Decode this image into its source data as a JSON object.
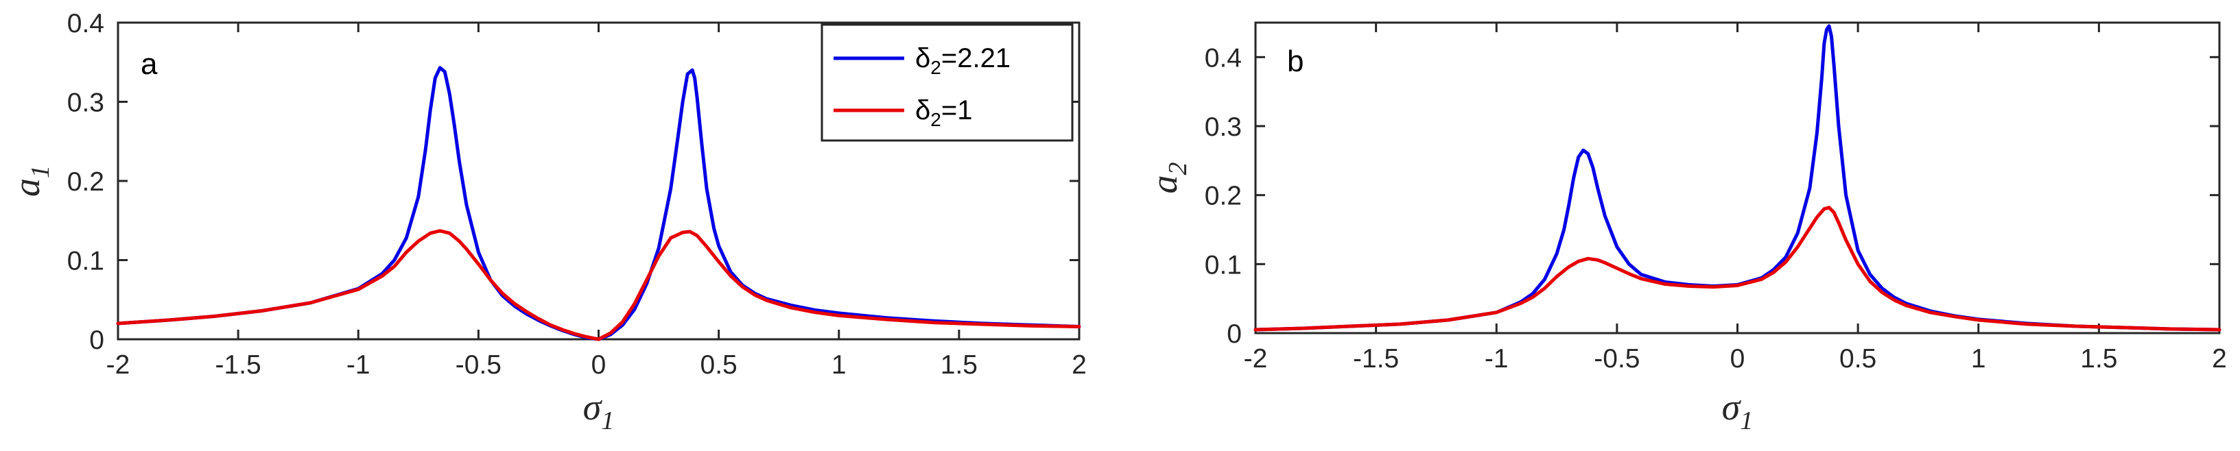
{
  "colors": {
    "series_blue": "#0000e6",
    "series_red": "#e60000",
    "axis": "#262626"
  },
  "chart_data": [
    {
      "type": "line",
      "panel_label": "a",
      "xlabel": "σ",
      "xlabel_sub": "1",
      "ylabel": "a",
      "ylabel_sub": "1",
      "xlim": [
        -2,
        2
      ],
      "ylim": [
        0,
        0.4
      ],
      "xticks": [
        -2,
        -1.5,
        -1,
        -0.5,
        0,
        0.5,
        1,
        1.5,
        2
      ],
      "xtick_labels": [
        "-2",
        "-1.5",
        "-1",
        "-0.5",
        "0",
        "0.5",
        "1",
        "1.5",
        "2"
      ],
      "yticks": [
        0,
        0.1,
        0.2,
        0.3,
        0.4
      ],
      "ytick_labels": [
        "0",
        "0.1",
        "0.2",
        "0.3",
        "0.4"
      ],
      "grid": false,
      "legend": {
        "placement": "top-right",
        "entries": [
          {
            "prefix": "δ",
            "sub": "2",
            "suffix": "=2.21"
          },
          {
            "prefix": "δ",
            "sub": "2",
            "suffix": "=1"
          }
        ]
      },
      "series": [
        {
          "color": "#0000e6",
          "x": [
            -2,
            -1.8,
            -1.6,
            -1.4,
            -1.2,
            -1.0,
            -0.9,
            -0.85,
            -0.8,
            -0.75,
            -0.72,
            -0.7,
            -0.68,
            -0.66,
            -0.64,
            -0.62,
            -0.6,
            -0.58,
            -0.55,
            -0.5,
            -0.45,
            -0.4,
            -0.35,
            -0.3,
            -0.25,
            -0.2,
            -0.15,
            -0.1,
            -0.05,
            0,
            0.05,
            0.1,
            0.15,
            0.2,
            0.25,
            0.3,
            0.33,
            0.35,
            0.37,
            0.39,
            0.4,
            0.41,
            0.43,
            0.45,
            0.48,
            0.5,
            0.55,
            0.6,
            0.65,
            0.7,
            0.8,
            0.9,
            1.0,
            1.2,
            1.4,
            1.6,
            1.8,
            2.0
          ],
          "y": [
            0.02,
            0.024,
            0.029,
            0.036,
            0.046,
            0.064,
            0.083,
            0.1,
            0.128,
            0.18,
            0.24,
            0.29,
            0.33,
            0.343,
            0.338,
            0.31,
            0.27,
            0.225,
            0.17,
            0.11,
            0.075,
            0.055,
            0.042,
            0.032,
            0.024,
            0.017,
            0.011,
            0.006,
            0.002,
            0.0,
            0.006,
            0.018,
            0.038,
            0.07,
            0.115,
            0.19,
            0.255,
            0.3,
            0.335,
            0.34,
            0.33,
            0.305,
            0.245,
            0.19,
            0.14,
            0.118,
            0.085,
            0.068,
            0.058,
            0.051,
            0.043,
            0.037,
            0.033,
            0.027,
            0.023,
            0.02,
            0.018,
            0.016
          ]
        },
        {
          "color": "#e60000",
          "x": [
            -2,
            -1.8,
            -1.6,
            -1.4,
            -1.2,
            -1.0,
            -0.9,
            -0.85,
            -0.8,
            -0.75,
            -0.7,
            -0.66,
            -0.62,
            -0.58,
            -0.55,
            -0.5,
            -0.45,
            -0.4,
            -0.35,
            -0.3,
            -0.25,
            -0.2,
            -0.15,
            -0.1,
            -0.05,
            0,
            0.05,
            0.1,
            0.15,
            0.2,
            0.25,
            0.3,
            0.35,
            0.38,
            0.41,
            0.45,
            0.5,
            0.55,
            0.6,
            0.65,
            0.7,
            0.8,
            0.9,
            1.0,
            1.2,
            1.4,
            1.6,
            1.8,
            2.0
          ],
          "y": [
            0.02,
            0.024,
            0.029,
            0.036,
            0.046,
            0.063,
            0.08,
            0.092,
            0.11,
            0.124,
            0.134,
            0.137,
            0.134,
            0.124,
            0.114,
            0.095,
            0.075,
            0.058,
            0.045,
            0.035,
            0.026,
            0.018,
            0.012,
            0.007,
            0.003,
            0.0,
            0.008,
            0.022,
            0.045,
            0.075,
            0.105,
            0.128,
            0.135,
            0.136,
            0.131,
            0.117,
            0.098,
            0.08,
            0.066,
            0.056,
            0.049,
            0.04,
            0.034,
            0.03,
            0.025,
            0.021,
            0.019,
            0.017,
            0.016
          ]
        }
      ]
    },
    {
      "type": "line",
      "panel_label": "b",
      "xlabel": "σ",
      "xlabel_sub": "1",
      "ylabel": "a",
      "ylabel_sub": "2",
      "xlim": [
        -2,
        2
      ],
      "ylim": [
        0,
        0.45
      ],
      "xticks": [
        -2,
        -1.5,
        -1,
        -0.5,
        0,
        0.5,
        1,
        1.5,
        2
      ],
      "xtick_labels": [
        "-2",
        "-1.5",
        "-1",
        "-0.5",
        "0",
        "0.5",
        "1",
        "1.5",
        "2"
      ],
      "yticks": [
        0,
        0.1,
        0.2,
        0.3,
        0.4
      ],
      "ytick_labels": [
        "0",
        "0.1",
        "0.2",
        "0.3",
        "0.4"
      ],
      "grid": false,
      "series": [
        {
          "color": "#0000e6",
          "x": [
            -2,
            -1.8,
            -1.6,
            -1.4,
            -1.2,
            -1.0,
            -0.9,
            -0.85,
            -0.8,
            -0.75,
            -0.72,
            -0.7,
            -0.68,
            -0.66,
            -0.64,
            -0.62,
            -0.6,
            -0.58,
            -0.55,
            -0.5,
            -0.45,
            -0.4,
            -0.3,
            -0.2,
            -0.1,
            0,
            0.1,
            0.15,
            0.2,
            0.25,
            0.3,
            0.33,
            0.35,
            0.36,
            0.37,
            0.38,
            0.39,
            0.4,
            0.42,
            0.45,
            0.5,
            0.55,
            0.6,
            0.65,
            0.7,
            0.8,
            0.9,
            1.0,
            1.2,
            1.4,
            1.6,
            1.8,
            2.0
          ],
          "y": [
            0.005,
            0.007,
            0.01,
            0.013,
            0.019,
            0.03,
            0.045,
            0.057,
            0.078,
            0.115,
            0.15,
            0.185,
            0.225,
            0.255,
            0.265,
            0.26,
            0.24,
            0.21,
            0.17,
            0.125,
            0.1,
            0.085,
            0.074,
            0.07,
            0.068,
            0.07,
            0.08,
            0.092,
            0.11,
            0.145,
            0.21,
            0.29,
            0.37,
            0.42,
            0.44,
            0.445,
            0.43,
            0.39,
            0.3,
            0.2,
            0.12,
            0.085,
            0.065,
            0.052,
            0.043,
            0.032,
            0.025,
            0.02,
            0.014,
            0.01,
            0.008,
            0.006,
            0.005
          ]
        },
        {
          "color": "#e60000",
          "x": [
            -2,
            -1.8,
            -1.6,
            -1.4,
            -1.2,
            -1.0,
            -0.9,
            -0.85,
            -0.8,
            -0.75,
            -0.7,
            -0.66,
            -0.62,
            -0.58,
            -0.55,
            -0.5,
            -0.45,
            -0.4,
            -0.3,
            -0.2,
            -0.1,
            0,
            0.1,
            0.15,
            0.2,
            0.25,
            0.3,
            0.33,
            0.36,
            0.38,
            0.4,
            0.42,
            0.45,
            0.5,
            0.55,
            0.6,
            0.65,
            0.7,
            0.8,
            0.9,
            1.0,
            1.2,
            1.4,
            1.6,
            1.8,
            2.0
          ],
          "y": [
            0.005,
            0.007,
            0.01,
            0.013,
            0.019,
            0.03,
            0.043,
            0.052,
            0.065,
            0.082,
            0.096,
            0.104,
            0.108,
            0.106,
            0.102,
            0.094,
            0.086,
            0.079,
            0.071,
            0.068,
            0.067,
            0.069,
            0.078,
            0.088,
            0.103,
            0.125,
            0.152,
            0.168,
            0.18,
            0.182,
            0.175,
            0.16,
            0.135,
            0.1,
            0.075,
            0.059,
            0.048,
            0.04,
            0.03,
            0.024,
            0.019,
            0.013,
            0.01,
            0.008,
            0.006,
            0.005
          ]
        }
      ]
    }
  ]
}
